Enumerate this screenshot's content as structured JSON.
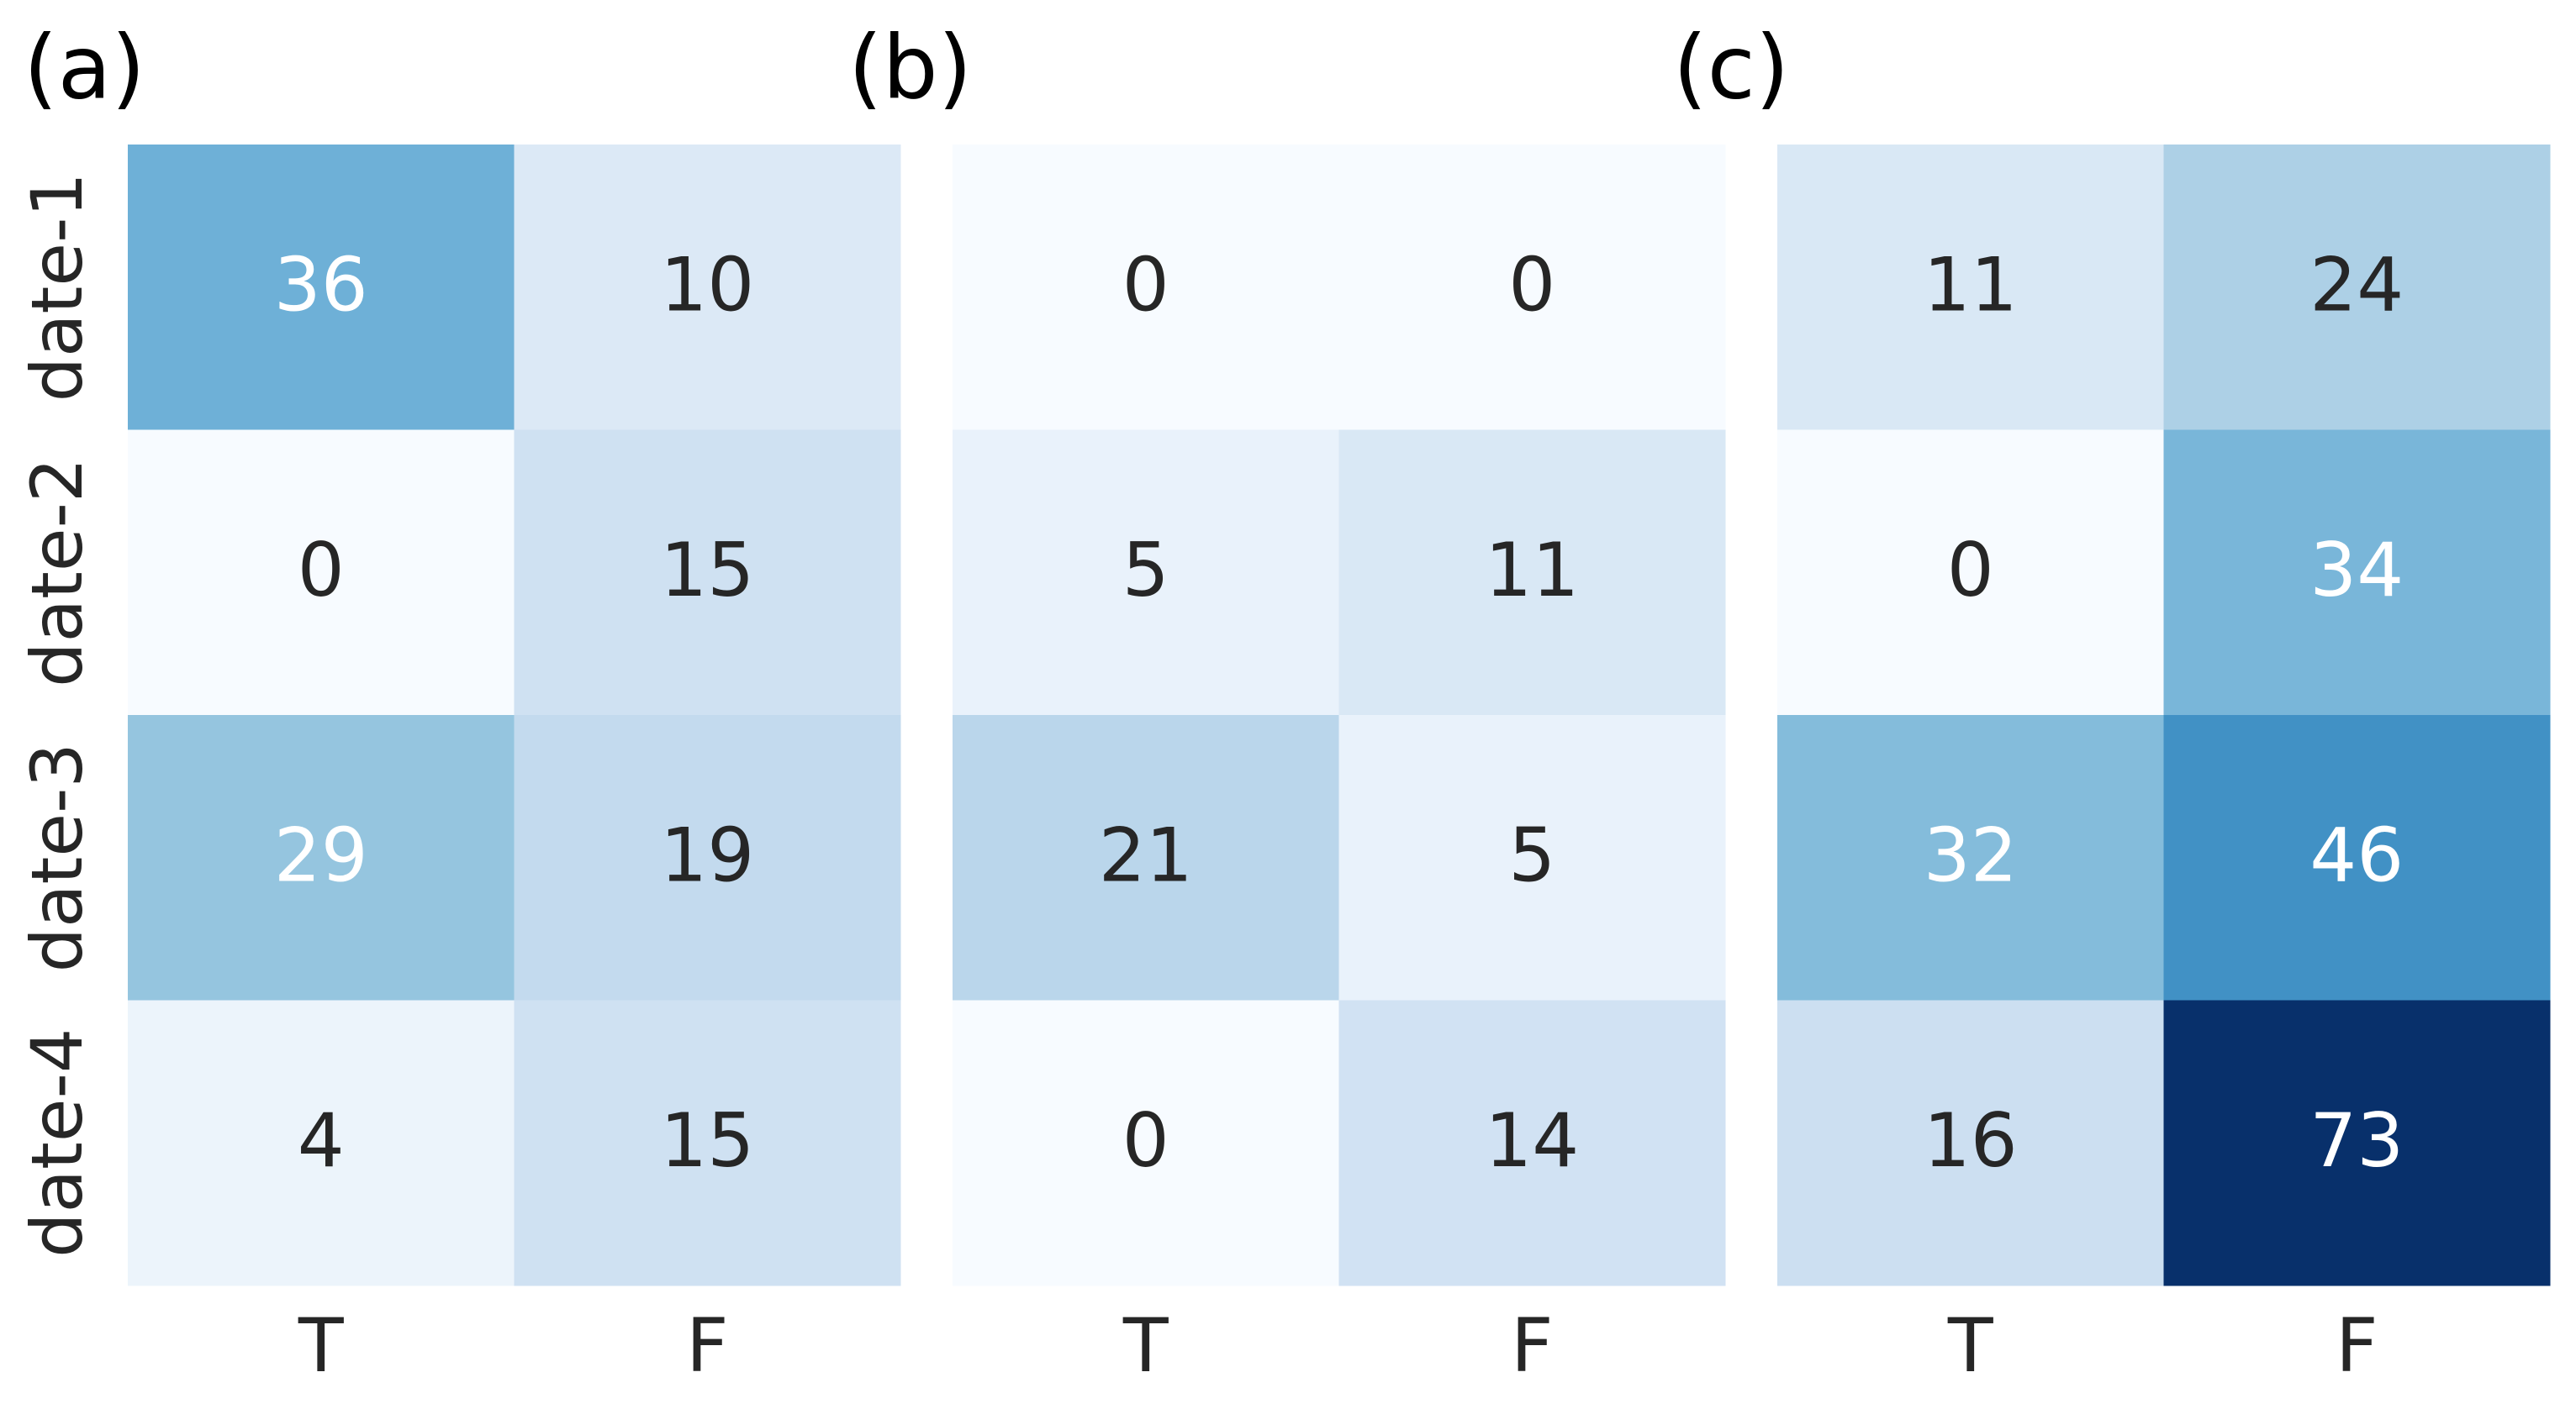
{
  "chart_data": [
    {
      "type": "heatmap",
      "title": "(a)",
      "colormap": "Blues",
      "x": [
        "T",
        "F"
      ],
      "y": [
        "date-1",
        "date-2",
        "date-3",
        "date-4"
      ],
      "values": [
        [
          36,
          10
        ],
        [
          0,
          15
        ],
        [
          29,
          19
        ],
        [
          4,
          15
        ]
      ]
    },
    {
      "type": "heatmap",
      "title": "(b)",
      "colormap": "Blues",
      "x": [
        "T",
        "F"
      ],
      "values": [
        [
          0,
          0
        ],
        [
          5,
          11
        ],
        [
          21,
          5
        ],
        [
          0,
          14
        ]
      ]
    },
    {
      "type": "heatmap",
      "title": "(c)",
      "colormap": "Blues",
      "x": [
        "T",
        "F"
      ],
      "values": [
        [
          11,
          24
        ],
        [
          0,
          34
        ],
        [
          32,
          46
        ],
        [
          16,
          73
        ]
      ]
    }
  ]
}
